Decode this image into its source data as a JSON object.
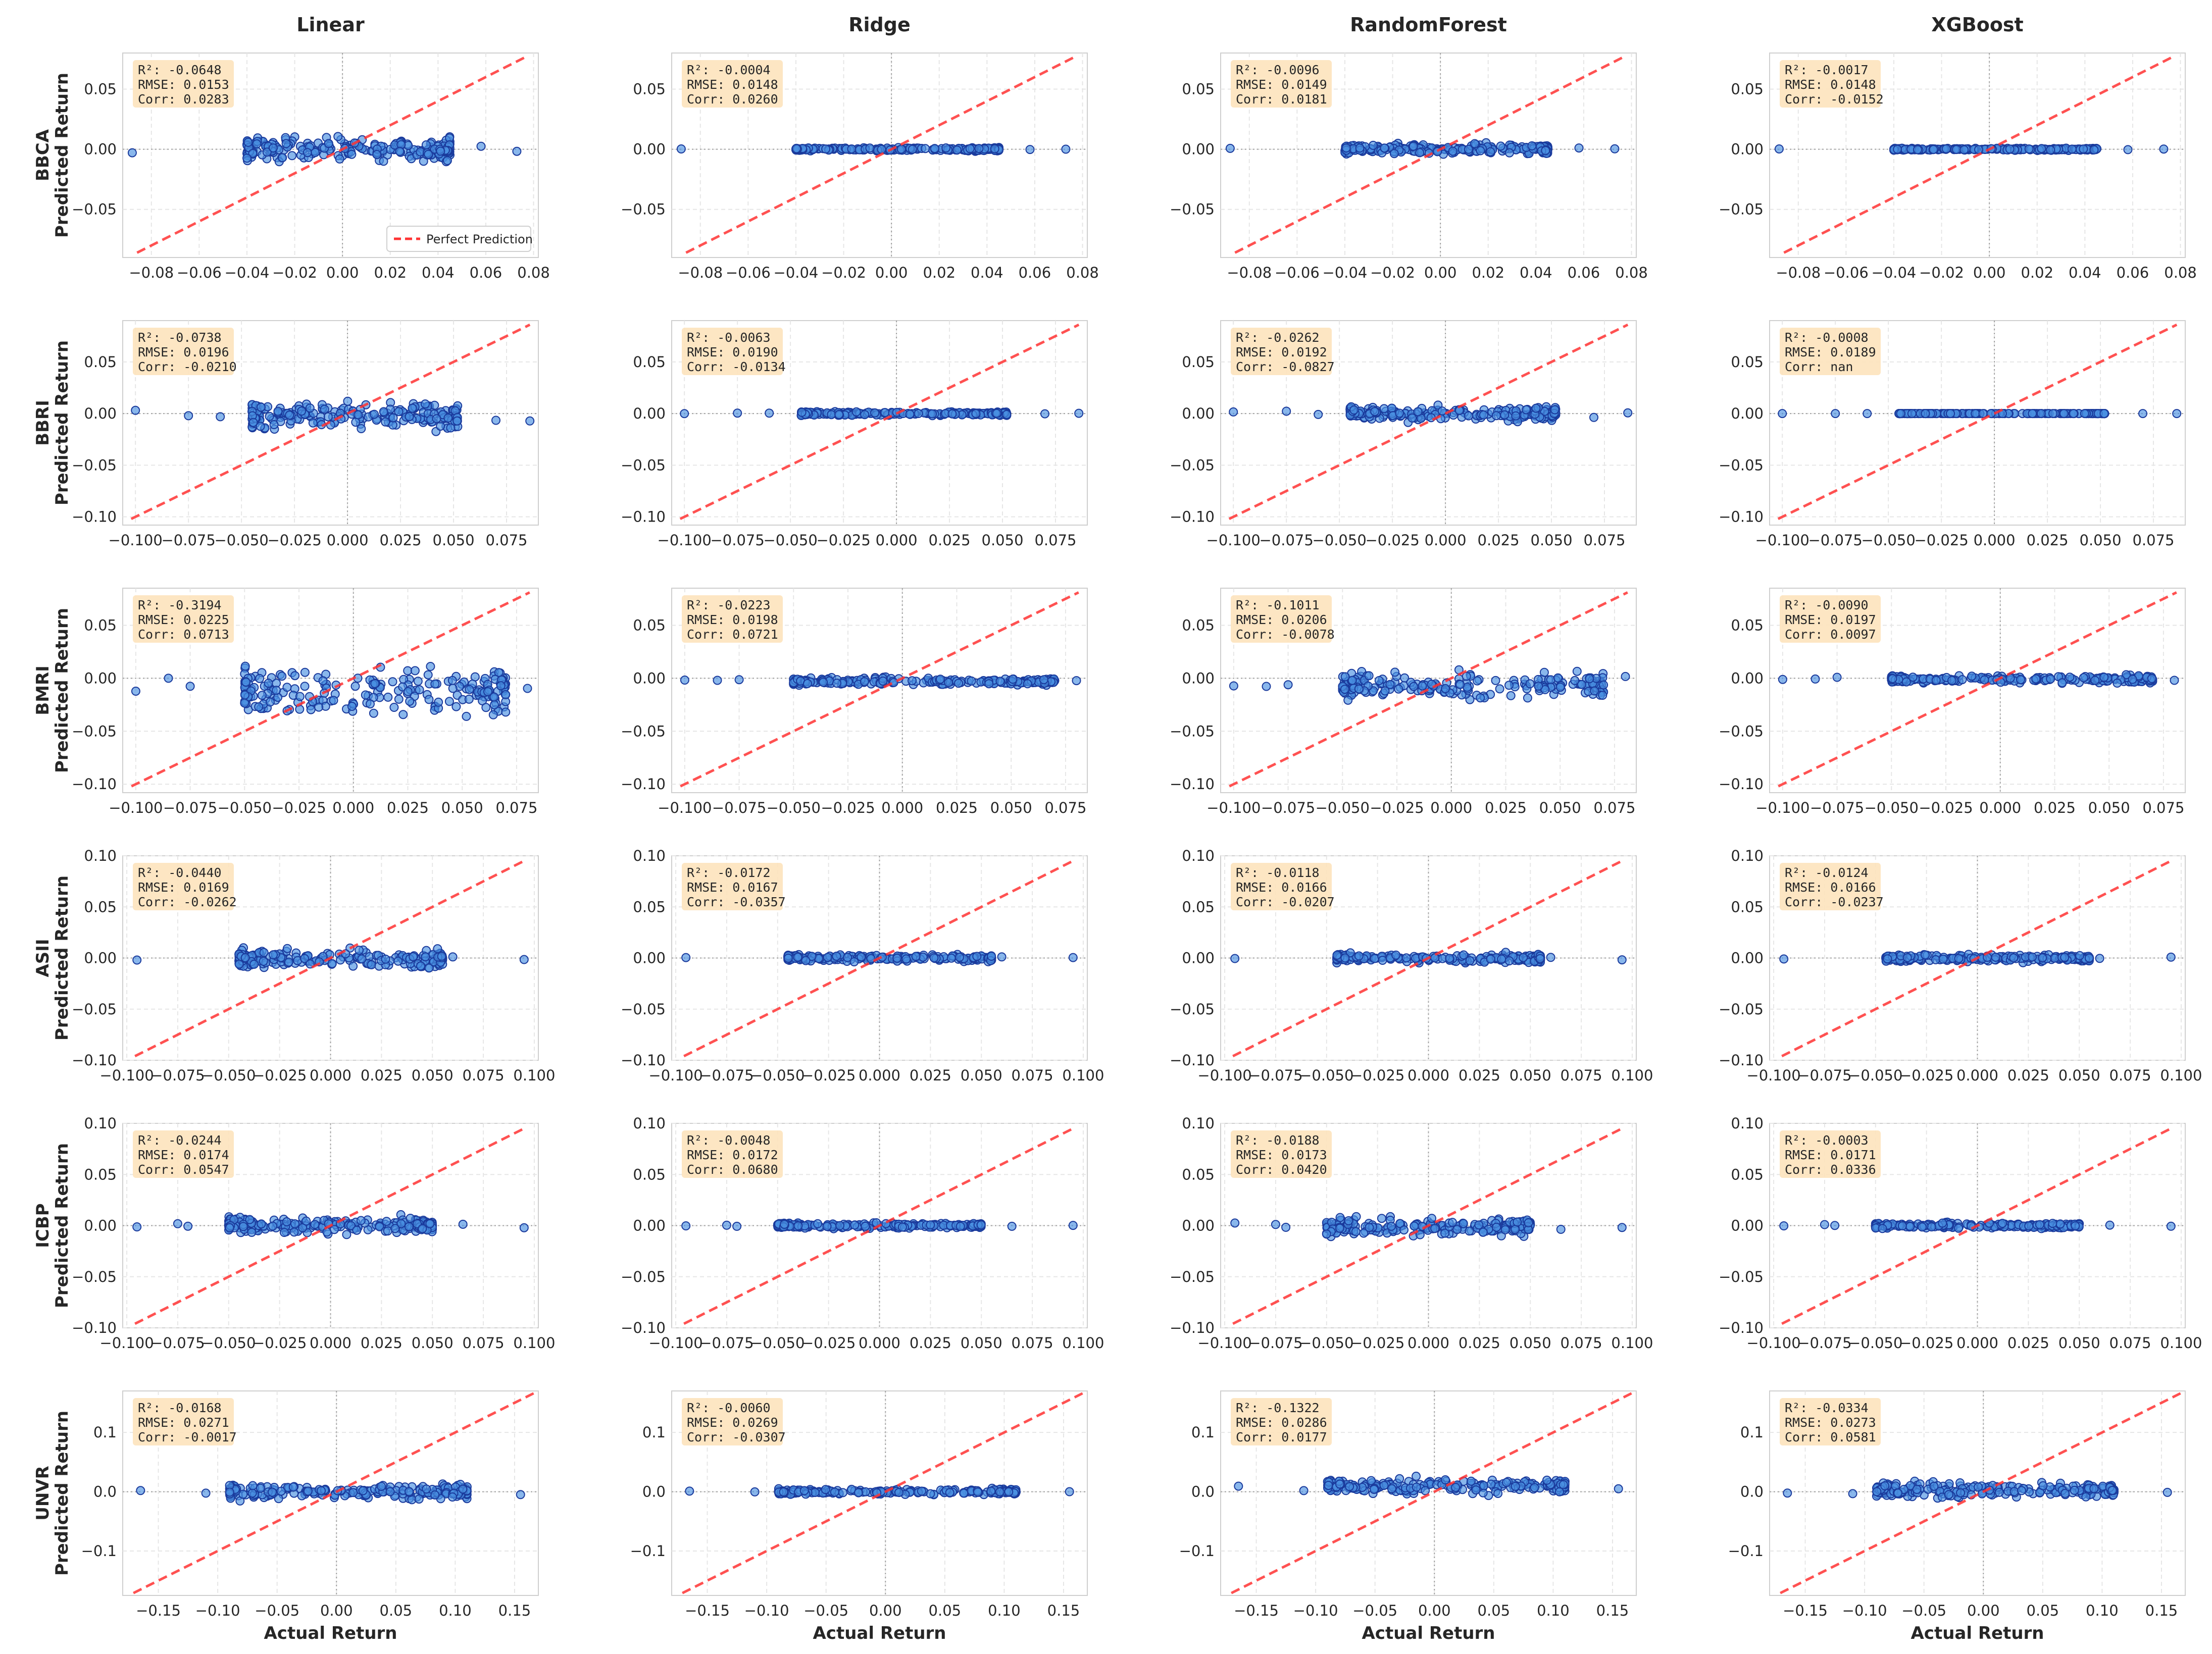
{
  "chart_data": {
    "type": "scatter",
    "models": [
      "Linear",
      "Ridge",
      "RandomForest",
      "XGBoost"
    ],
    "x_label": "Actual Return",
    "y_label": "Predicted Return",
    "legend_label": "Perfect Prediction",
    "colors": {
      "point_fill": "#4a90e2",
      "point_edge": "#1a3a9c",
      "ideal_line": "#ff3333",
      "stats_box": "#fde3bd",
      "grid": "#e6e6e6",
      "zero_line": "#a0a0a0"
    },
    "rows": [
      {
        "ticker": "BBCA",
        "xlim": [
          -0.092,
          0.082
        ],
        "ylim": [
          -0.09,
          0.08
        ],
        "xticks": [
          -0.08,
          -0.06,
          -0.04,
          -0.02,
          0.0,
          0.02,
          0.04,
          0.06,
          0.08
        ],
        "xtick_labels": [
          "−0.08",
          "−0.06",
          "−0.04",
          "−0.02",
          "0.00",
          "0.02",
          "0.04",
          "0.06",
          "0.08"
        ],
        "yticks": [
          -0.05,
          0.0,
          0.05
        ],
        "ytick_labels": [
          "−0.05",
          "0.00",
          "0.05"
        ],
        "x_range": [
          -0.04,
          0.045
        ],
        "outliers": [
          -0.088,
          0.058,
          0.073
        ],
        "panels": [
          {
            "r2": "-0.0648",
            "rmse": "0.0153",
            "corr": "0.0283",
            "spread": 0.0045,
            "bias": 0.0,
            "slope": 0.0
          },
          {
            "r2": "-0.0004",
            "rmse": "0.0148",
            "corr": "0.0260",
            "spread": 0.0006,
            "bias": 0.0,
            "slope": 0.0
          },
          {
            "r2": "-0.0096",
            "rmse": "0.0149",
            "corr": "0.0181",
            "spread": 0.002,
            "bias": 0.0,
            "slope": 0.0
          },
          {
            "r2": "-0.0017",
            "rmse": "0.0148",
            "corr": "-0.0152",
            "spread": 0.0004,
            "bias": 0.0,
            "slope": 0.0
          }
        ]
      },
      {
        "ticker": "BBRI",
        "xlim": [
          -0.106,
          0.09
        ],
        "ylim": [
          -0.108,
          0.09
        ],
        "xticks": [
          -0.1,
          -0.075,
          -0.05,
          -0.025,
          0.0,
          0.025,
          0.05,
          0.075
        ],
        "xtick_labels": [
          "−0.100",
          "−0.075",
          "−0.050",
          "−0.025",
          "0.000",
          "0.025",
          "0.050",
          "0.075"
        ],
        "yticks": [
          -0.1,
          -0.05,
          0.0,
          0.05
        ],
        "ytick_labels": [
          "−0.10",
          "−0.05",
          "0.00",
          "0.05"
        ],
        "x_range": [
          -0.045,
          0.052
        ],
        "outliers": [
          -0.1,
          -0.075,
          -0.06,
          0.07,
          0.086
        ],
        "panels": [
          {
            "r2": "-0.0738",
            "rmse": "0.0196",
            "corr": "-0.0210",
            "spread": 0.006,
            "bias": -0.002,
            "slope": 0.0
          },
          {
            "r2": "-0.0063",
            "rmse": "0.0190",
            "corr": "-0.0134",
            "spread": 0.0008,
            "bias": 0.0,
            "slope": 0.0
          },
          {
            "r2": "-0.0262",
            "rmse": "0.0192",
            "corr": "-0.0827",
            "spread": 0.003,
            "bias": 0.0,
            "slope": 0.0
          },
          {
            "r2": "-0.0008",
            "rmse": "0.0189",
            "corr": "nan",
            "spread": 0.0,
            "bias": 0.0,
            "slope": 0.0
          }
        ]
      },
      {
        "ticker": "BMRI",
        "xlim": [
          -0.106,
          0.085
        ],
        "ylim": [
          -0.108,
          0.085
        ],
        "xticks": [
          -0.1,
          -0.075,
          -0.05,
          -0.025,
          0.0,
          0.025,
          0.05,
          0.075
        ],
        "xtick_labels": [
          "−0.100",
          "−0.075",
          "−0.050",
          "−0.025",
          "0.000",
          "0.025",
          "0.050",
          "0.075"
        ],
        "yticks": [
          -0.1,
          -0.05,
          0.0,
          0.05
        ],
        "ytick_labels": [
          "−0.10",
          "−0.05",
          "0.00",
          "0.05"
        ],
        "x_range": [
          -0.05,
          0.07
        ],
        "outliers": [
          -0.1,
          -0.085,
          -0.075,
          0.08
        ],
        "panels": [
          {
            "r2": "-0.3194",
            "rmse": "0.0225",
            "corr": "0.0713",
            "spread": 0.011,
            "bias": -0.012,
            "slope": 0.0
          },
          {
            "r2": "-0.0223",
            "rmse": "0.0198",
            "corr": "0.0721",
            "spread": 0.0015,
            "bias": -0.003,
            "slope": 0.0
          },
          {
            "r2": "-0.1011",
            "rmse": "0.0206",
            "corr": "-0.0078",
            "spread": 0.006,
            "bias": -0.007,
            "slope": 0.0
          },
          {
            "r2": "-0.0090",
            "rmse": "0.0197",
            "corr": "0.0097",
            "spread": 0.0015,
            "bias": -0.001,
            "slope": 0.0
          }
        ]
      },
      {
        "ticker": "ASII",
        "xlim": [
          -0.102,
          0.102
        ],
        "ylim": [
          -0.1,
          0.1
        ],
        "xticks": [
          -0.1,
          -0.075,
          -0.05,
          -0.025,
          0.0,
          0.025,
          0.05,
          0.075,
          0.1
        ],
        "xtick_labels": [
          "−0.100",
          "−0.075",
          "−0.050",
          "−0.025",
          "0.000",
          "0.025",
          "0.050",
          "0.075",
          "0.100"
        ],
        "yticks": [
          -0.1,
          -0.05,
          0.0,
          0.05,
          0.1
        ],
        "ytick_labels": [
          "−0.10",
          "−0.05",
          "0.00",
          "0.05",
          "0.10"
        ],
        "x_range": [
          -0.045,
          0.055
        ],
        "outliers": [
          -0.095,
          0.06,
          0.095
        ],
        "panels": [
          {
            "r2": "-0.0440",
            "rmse": "0.0169",
            "corr": "-0.0262",
            "spread": 0.004,
            "bias": -0.001,
            "slope": 0.0
          },
          {
            "r2": "-0.0172",
            "rmse": "0.0167",
            "corr": "-0.0357",
            "spread": 0.0015,
            "bias": 0.0,
            "slope": 0.0
          },
          {
            "r2": "-0.0118",
            "rmse": "0.0166",
            "corr": "-0.0207",
            "spread": 0.002,
            "bias": 0.0,
            "slope": 0.0
          },
          {
            "r2": "-0.0124",
            "rmse": "0.0166",
            "corr": "-0.0237",
            "spread": 0.0015,
            "bias": 0.0,
            "slope": 0.0
          }
        ]
      },
      {
        "ticker": "ICBP",
        "xlim": [
          -0.102,
          0.102
        ],
        "ylim": [
          -0.1,
          0.1
        ],
        "xticks": [
          -0.1,
          -0.075,
          -0.05,
          -0.025,
          0.0,
          0.025,
          0.05,
          0.075,
          0.1
        ],
        "xtick_labels": [
          "−0.100",
          "−0.075",
          "−0.050",
          "−0.025",
          "0.000",
          "0.025",
          "0.050",
          "0.075",
          "0.100"
        ],
        "yticks": [
          -0.1,
          -0.05,
          0.0,
          0.05,
          0.1
        ],
        "ytick_labels": [
          "−0.10",
          "−0.05",
          "0.00",
          "0.05",
          "0.10"
        ],
        "x_range": [
          -0.05,
          0.05
        ],
        "outliers": [
          -0.095,
          -0.075,
          -0.07,
          0.065,
          0.095
        ],
        "panels": [
          {
            "r2": "-0.0244",
            "rmse": "0.0174",
            "corr": "0.0547",
            "spread": 0.0035,
            "bias": 0.0,
            "slope": 0.0
          },
          {
            "r2": "-0.0048",
            "rmse": "0.0172",
            "corr": "0.0680",
            "spread": 0.0012,
            "bias": 0.0,
            "slope": 0.0
          },
          {
            "r2": "-0.0188",
            "rmse": "0.0173",
            "corr": "0.0420",
            "spread": 0.004,
            "bias": -0.001,
            "slope": 0.0
          },
          {
            "r2": "-0.0003",
            "rmse": "0.0171",
            "corr": "0.0336",
            "spread": 0.0012,
            "bias": 0.0,
            "slope": 0.0
          }
        ]
      },
      {
        "ticker": "UNVR",
        "xlim": [
          -0.18,
          0.17
        ],
        "ylim": [
          -0.175,
          0.17
        ],
        "xticks": [
          -0.15,
          -0.1,
          -0.05,
          0.0,
          0.05,
          0.1,
          0.15
        ],
        "xtick_labels": [
          "−0.15",
          "−0.10",
          "−0.05",
          "0.00",
          "0.05",
          "0.10",
          "0.15"
        ],
        "yticks": [
          -0.1,
          0.0,
          0.1
        ],
        "ytick_labels": [
          "−0.1",
          "0.0",
          "0.1"
        ],
        "x_range": [
          -0.09,
          0.11
        ],
        "outliers": [
          -0.165,
          -0.11,
          0.155
        ],
        "panels": [
          {
            "r2": "-0.0168",
            "rmse": "0.0271",
            "corr": "-0.0017",
            "spread": 0.006,
            "bias": 0.0,
            "slope": 0.0
          },
          {
            "r2": "-0.0060",
            "rmse": "0.0269",
            "corr": "-0.0307",
            "spread": 0.002,
            "bias": 0.0,
            "slope": 0.0
          },
          {
            "r2": "-0.1322",
            "rmse": "0.0286",
            "corr": "0.0177",
            "spread": 0.006,
            "bias": 0.01,
            "slope": 0.0
          },
          {
            "r2": "-0.0334",
            "rmse": "0.0273",
            "corr": "0.0581",
            "spread": 0.006,
            "bias": 0.003,
            "slope": 0.0
          }
        ]
      }
    ]
  }
}
